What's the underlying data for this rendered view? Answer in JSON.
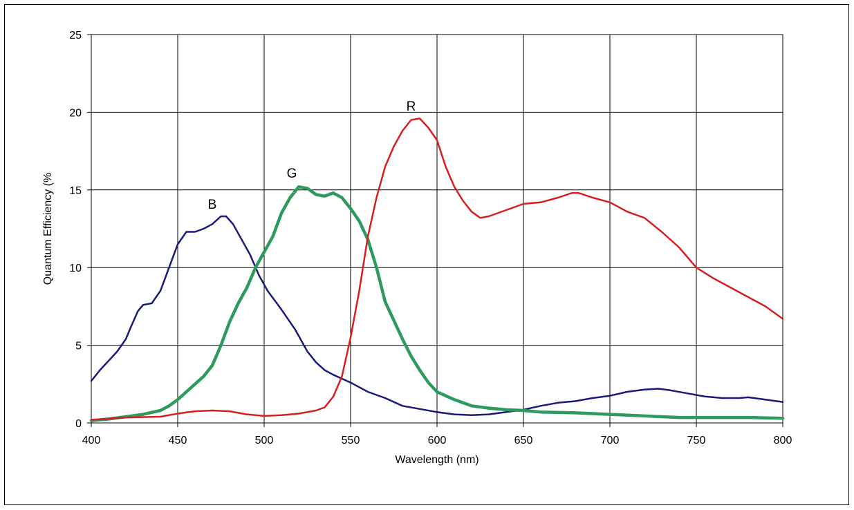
{
  "chart_data": {
    "type": "line",
    "title": "",
    "xlabel": "Wavelength (nm)",
    "ylabel": "Quantum Efficiency (%",
    "xlim": [
      400,
      800
    ],
    "ylim": [
      0,
      25
    ],
    "xticks": [
      400,
      450,
      500,
      550,
      600,
      650,
      700,
      750,
      800
    ],
    "yticks": [
      0,
      5,
      10,
      15,
      20,
      25
    ],
    "grid": true,
    "series": [
      {
        "name": "B",
        "color": "#1a1a7a",
        "label_at": [
          470,
          13.8
        ],
        "points": [
          [
            400,
            2.7
          ],
          [
            405,
            3.4
          ],
          [
            410,
            4.0
          ],
          [
            415,
            4.6
          ],
          [
            420,
            5.4
          ],
          [
            423,
            6.2
          ],
          [
            427,
            7.2
          ],
          [
            430,
            7.6
          ],
          [
            435,
            7.7
          ],
          [
            440,
            8.5
          ],
          [
            445,
            10.0
          ],
          [
            450,
            11.5
          ],
          [
            455,
            12.3
          ],
          [
            460,
            12.3
          ],
          [
            465,
            12.5
          ],
          [
            470,
            12.8
          ],
          [
            475,
            13.3
          ],
          [
            478,
            13.3
          ],
          [
            482,
            12.8
          ],
          [
            487,
            11.8
          ],
          [
            492,
            10.8
          ],
          [
            497,
            9.5
          ],
          [
            502,
            8.5
          ],
          [
            510,
            7.3
          ],
          [
            518,
            6.0
          ],
          [
            525,
            4.6
          ],
          [
            530,
            3.9
          ],
          [
            535,
            3.4
          ],
          [
            540,
            3.1
          ],
          [
            550,
            2.6
          ],
          [
            560,
            2.0
          ],
          [
            570,
            1.6
          ],
          [
            580,
            1.1
          ],
          [
            590,
            0.9
          ],
          [
            600,
            0.7
          ],
          [
            610,
            0.55
          ],
          [
            620,
            0.5
          ],
          [
            630,
            0.55
          ],
          [
            640,
            0.7
          ],
          [
            650,
            0.85
          ],
          [
            660,
            1.1
          ],
          [
            670,
            1.3
          ],
          [
            680,
            1.4
          ],
          [
            690,
            1.6
          ],
          [
            700,
            1.75
          ],
          [
            710,
            2.0
          ],
          [
            720,
            2.15
          ],
          [
            728,
            2.2
          ],
          [
            735,
            2.1
          ],
          [
            745,
            1.9
          ],
          [
            755,
            1.7
          ],
          [
            765,
            1.6
          ],
          [
            775,
            1.6
          ],
          [
            780,
            1.65
          ],
          [
            790,
            1.5
          ],
          [
            800,
            1.35
          ]
        ]
      },
      {
        "name": "G",
        "color": "#2e9a5e",
        "label_at": [
          516,
          15.8
        ],
        "points": [
          [
            400,
            0.15
          ],
          [
            410,
            0.25
          ],
          [
            420,
            0.4
          ],
          [
            430,
            0.55
          ],
          [
            440,
            0.8
          ],
          [
            445,
            1.1
          ],
          [
            450,
            1.5
          ],
          [
            455,
            2.0
          ],
          [
            460,
            2.5
          ],
          [
            465,
            3.0
          ],
          [
            470,
            3.7
          ],
          [
            475,
            5.0
          ],
          [
            480,
            6.5
          ],
          [
            485,
            7.7
          ],
          [
            490,
            8.7
          ],
          [
            495,
            10.0
          ],
          [
            500,
            11.0
          ],
          [
            505,
            12.0
          ],
          [
            510,
            13.5
          ],
          [
            515,
            14.5
          ],
          [
            520,
            15.2
          ],
          [
            525,
            15.1
          ],
          [
            530,
            14.7
          ],
          [
            535,
            14.6
          ],
          [
            540,
            14.8
          ],
          [
            545,
            14.5
          ],
          [
            550,
            13.8
          ],
          [
            555,
            13.0
          ],
          [
            560,
            11.8
          ],
          [
            565,
            10.0
          ],
          [
            570,
            7.8
          ],
          [
            575,
            6.6
          ],
          [
            580,
            5.4
          ],
          [
            585,
            4.3
          ],
          [
            590,
            3.4
          ],
          [
            595,
            2.6
          ],
          [
            600,
            2.0
          ],
          [
            610,
            1.5
          ],
          [
            620,
            1.1
          ],
          [
            630,
            0.95
          ],
          [
            640,
            0.85
          ],
          [
            650,
            0.8
          ],
          [
            660,
            0.7
          ],
          [
            680,
            0.65
          ],
          [
            700,
            0.55
          ],
          [
            720,
            0.45
          ],
          [
            740,
            0.35
          ],
          [
            760,
            0.35
          ],
          [
            780,
            0.35
          ],
          [
            800,
            0.3
          ]
        ]
      },
      {
        "name": "R",
        "color": "#d42020",
        "label_at": [
          585,
          20.1
        ],
        "points": [
          [
            400,
            0.2
          ],
          [
            420,
            0.35
          ],
          [
            440,
            0.4
          ],
          [
            450,
            0.6
          ],
          [
            460,
            0.75
          ],
          [
            470,
            0.8
          ],
          [
            480,
            0.75
          ],
          [
            490,
            0.55
          ],
          [
            500,
            0.45
          ],
          [
            510,
            0.5
          ],
          [
            520,
            0.6
          ],
          [
            530,
            0.8
          ],
          [
            535,
            1.0
          ],
          [
            540,
            1.7
          ],
          [
            545,
            3.0
          ],
          [
            550,
            5.5
          ],
          [
            555,
            8.5
          ],
          [
            560,
            12.0
          ],
          [
            565,
            14.5
          ],
          [
            570,
            16.5
          ],
          [
            575,
            17.8
          ],
          [
            580,
            18.8
          ],
          [
            585,
            19.5
          ],
          [
            590,
            19.6
          ],
          [
            595,
            19.0
          ],
          [
            600,
            18.2
          ],
          [
            605,
            16.5
          ],
          [
            610,
            15.2
          ],
          [
            615,
            14.3
          ],
          [
            620,
            13.6
          ],
          [
            625,
            13.2
          ],
          [
            630,
            13.3
          ],
          [
            640,
            13.7
          ],
          [
            650,
            14.1
          ],
          [
            660,
            14.2
          ],
          [
            670,
            14.5
          ],
          [
            678,
            14.8
          ],
          [
            682,
            14.8
          ],
          [
            690,
            14.5
          ],
          [
            700,
            14.2
          ],
          [
            710,
            13.6
          ],
          [
            720,
            13.2
          ],
          [
            730,
            12.3
          ],
          [
            740,
            11.3
          ],
          [
            750,
            10.0
          ],
          [
            760,
            9.3
          ],
          [
            770,
            8.7
          ],
          [
            780,
            8.1
          ],
          [
            790,
            7.5
          ],
          [
            800,
            6.7
          ]
        ]
      }
    ]
  }
}
